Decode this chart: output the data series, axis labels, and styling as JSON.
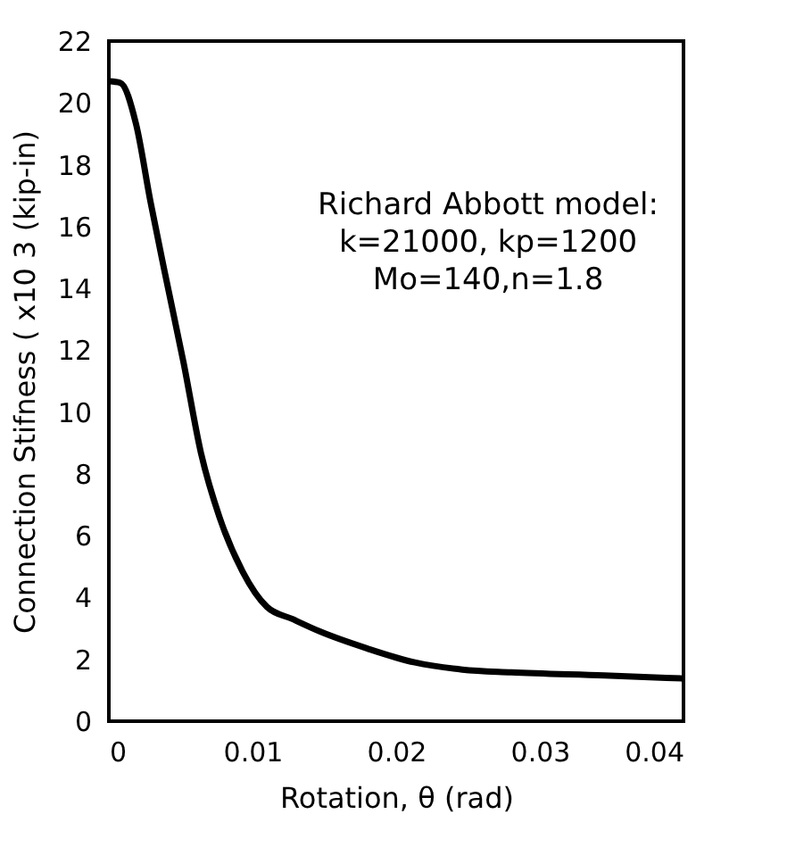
{
  "chart_data": {
    "type": "line",
    "xlabel": "Rotation, θ (rad)",
    "ylabel": "Connection Stifness (  x10 3 (kip-in)",
    "x": [
      0,
      0.0008,
      0.0019,
      0.0029,
      0.0039,
      0.0052,
      0.0064,
      0.0077,
      0.0093,
      0.011,
      0.0128,
      0.0147,
      0.018,
      0.0213,
      0.0246,
      0.028,
      0.0345,
      0.04
    ],
    "series": [
      {
        "color": "#000000",
        "values": [
          20.7,
          20.65,
          19.3,
          16.8,
          14.5,
          11.6,
          8.7,
          6.6,
          4.85,
          3.7,
          3.3,
          2.9,
          2.35,
          1.9,
          1.67,
          1.58,
          1.48,
          1.38
        ]
      }
    ],
    "xlim": [
      0,
      0.04
    ],
    "xticks": [
      0,
      0.01,
      0.02,
      0.03,
      0.04
    ],
    "ylim": [
      0,
      22
    ],
    "yticks": [
      0,
      2,
      4,
      6,
      8,
      10,
      12,
      14,
      16,
      18,
      20,
      22
    ],
    "grid": false,
    "legend": false,
    "line_style": "solid",
    "marker": "none",
    "annotations": [
      "Richard Abbott model:\nk=21000, kp=1200\nMo=140,n=1.8"
    ]
  }
}
